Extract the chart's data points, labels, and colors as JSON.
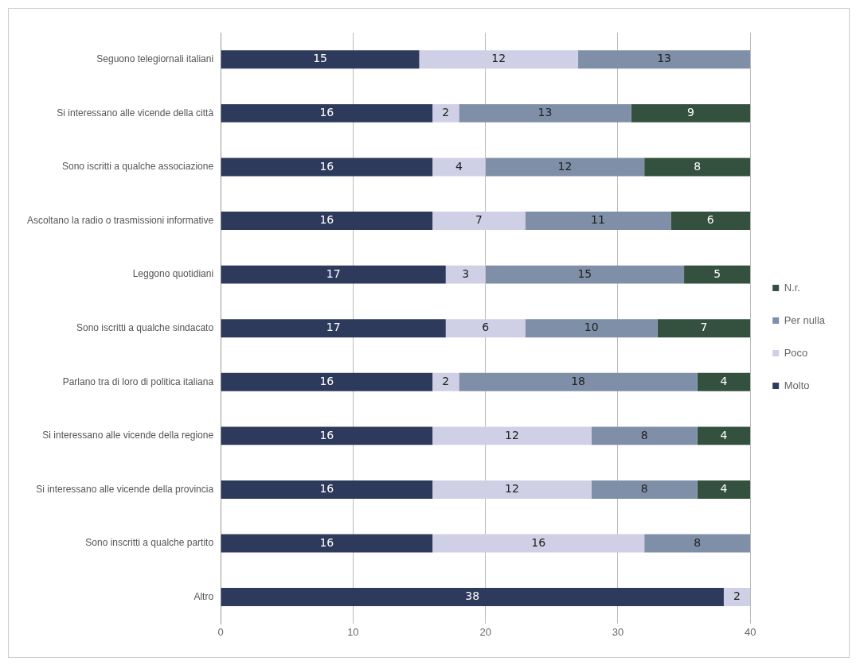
{
  "chart_data": {
    "type": "bar",
    "orientation": "horizontal",
    "stacked": true,
    "categories": [
      "Seguono telegiornali italiani",
      "Si interessano alle vicende della città",
      "Sono iscritti a qualche associazione",
      "Ascoltano la radio o trasmissioni informative",
      "Leggono quotidiani",
      "Sono iscritti a qualche sindacato",
      "Parlano tra di loro di politica italiana",
      "Si interessano alle vicende della regione",
      "Si interessano alle vicende della provincia",
      "Sono inscritti a qualche partito",
      "Altro"
    ],
    "series": [
      {
        "name": "Molto",
        "color": "#2e3a5c",
        "values": [
          15,
          16,
          16,
          16,
          17,
          17,
          16,
          16,
          16,
          16,
          38
        ]
      },
      {
        "name": "Poco",
        "color": "#cfd0e6",
        "values": [
          12,
          2,
          4,
          7,
          3,
          6,
          2,
          12,
          12,
          16,
          2
        ]
      },
      {
        "name": "Per nulla",
        "color": "#7f8fa8",
        "values": [
          13,
          13,
          12,
          11,
          15,
          10,
          18,
          8,
          8,
          8,
          null
        ]
      },
      {
        "name": "N.r.",
        "color": "#34503e",
        "values": [
          null,
          9,
          8,
          6,
          5,
          7,
          4,
          4,
          4,
          null,
          null
        ]
      }
    ],
    "xlim": [
      0,
      40
    ],
    "xticks": [
      0,
      10,
      20,
      30,
      40
    ],
    "grid": "x",
    "legend": "right",
    "data_labels": true
  }
}
